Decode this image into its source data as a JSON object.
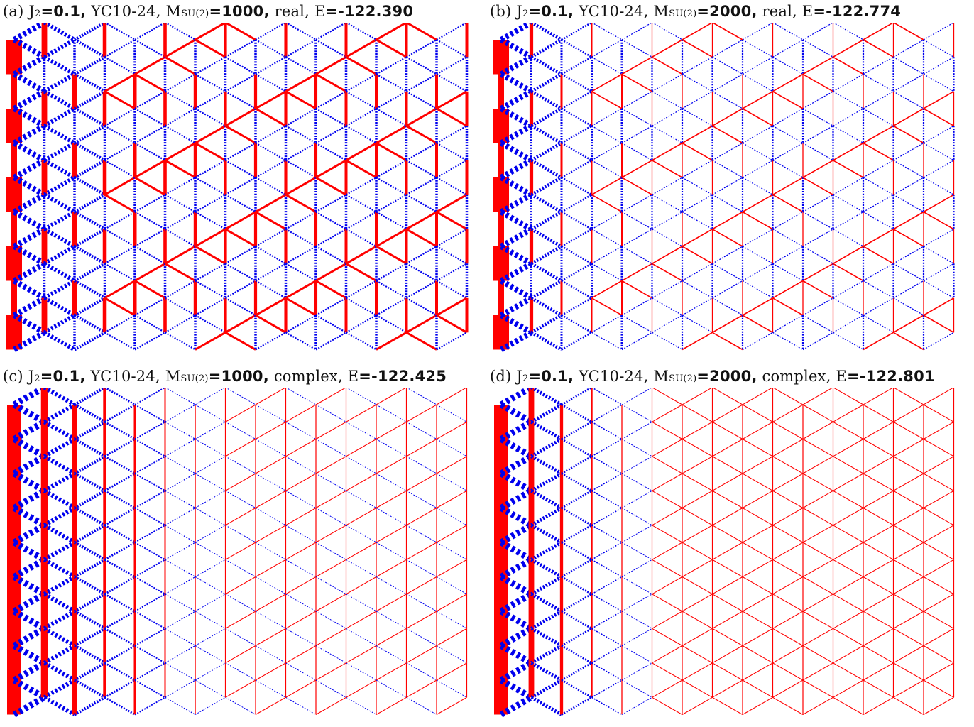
{
  "panels": [
    {
      "id": "a",
      "label": "(a)",
      "j2": "J",
      "j2_sub": "2",
      "j2_value": "=0.1,",
      "cylinder": "YC10-24,",
      "m_label": "M",
      "m_sub": "SU(2)",
      "m_value": "=1000,",
      "wavefunction": "real,",
      "energy_label": "E",
      "energy_value": "=-122.390"
    },
    {
      "id": "b",
      "label": "(b)",
      "j2": "J",
      "j2_sub": "2",
      "j2_value": "=0.1,",
      "cylinder": "YC10-24,",
      "m_label": "M",
      "m_sub": "SU(2)",
      "m_value": "=2000,",
      "wavefunction": "real,",
      "energy_label": "E",
      "energy_value": "=-122.774"
    },
    {
      "id": "c",
      "label": "(c)",
      "j2": "J",
      "j2_sub": "2",
      "j2_value": "=0.1,",
      "cylinder": "YC10-24,",
      "m_label": "M",
      "m_sub": "SU(2)",
      "m_value": "=1000,",
      "wavefunction": "complex,",
      "energy_label": "E",
      "energy_value": "=-122.425"
    },
    {
      "id": "d",
      "label": "(d)",
      "j2": "J",
      "j2_sub": "2",
      "j2_value": "=0.1,",
      "cylinder": "YC10-24,",
      "m_label": "M",
      "m_sub": "SU(2)",
      "m_value": "=2000,",
      "wavefunction": "complex,",
      "energy_label": "E",
      "energy_value": "=-122.801"
    }
  ],
  "legend_colors": {
    "strong_bond": "#ff0000",
    "weak_bond": "#0000ee"
  }
}
